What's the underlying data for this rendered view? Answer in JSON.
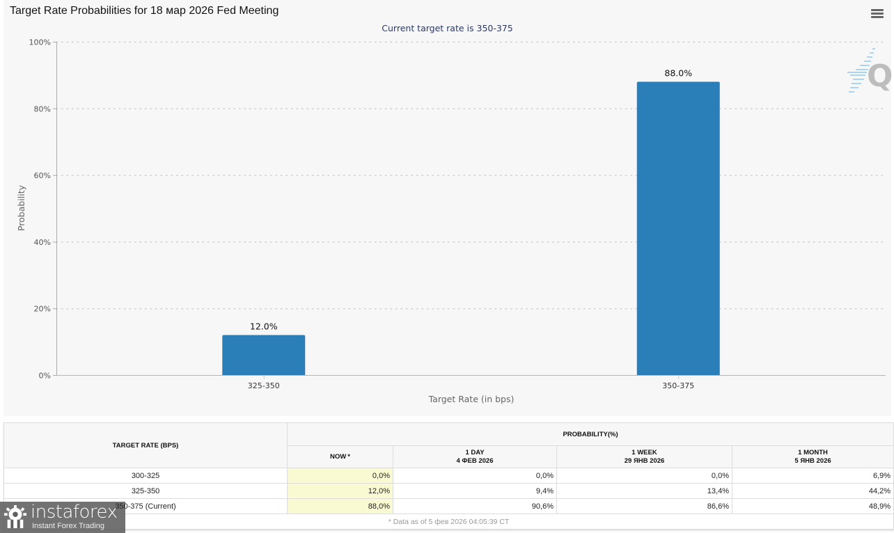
{
  "chart": {
    "title": "Target Rate Probabilities for 18 мар 2026 Fed Meeting",
    "subtitle": "Current target rate is 350-375",
    "menu_icon": "hamburger-menu-icon",
    "watermark_icon": "quikstrike-q-logo-icon",
    "bar_color": "#2a7fb8"
  },
  "chart_data": {
    "type": "bar",
    "title": "Target Rate Probabilities for 18 мар 2026 Fed Meeting",
    "subtitle": "Current target rate is 350-375",
    "categories": [
      "325-350",
      "350-375"
    ],
    "values": [
      12.0,
      88.0
    ],
    "data_labels": [
      "12.0%",
      "88.0%"
    ],
    "xlabel": "Target Rate (in bps)",
    "ylabel": "Probability",
    "ylim": [
      0,
      100
    ],
    "yticks": [
      0,
      20,
      40,
      60,
      80,
      100
    ],
    "ytick_labels": [
      "0%",
      "20%",
      "40%",
      "60%",
      "80%",
      "100%"
    ],
    "grid": true,
    "legend": "none"
  },
  "table": {
    "header_rate": "TARGET RATE (BPS)",
    "header_prob": "PROBABILITY(%)",
    "columns": [
      {
        "line1": "NOW",
        "line2": "",
        "marker": "*"
      },
      {
        "line1": "1 DAY",
        "line2": "4 ФЕВ 2026",
        "marker": ""
      },
      {
        "line1": "1 WEEK",
        "line2": "29 ЯНВ 2026",
        "marker": ""
      },
      {
        "line1": "1 MONTH",
        "line2": "5 ЯНВ 2026",
        "marker": ""
      }
    ],
    "rows": [
      {
        "rate": "300-325",
        "values": [
          "0,0%",
          "0,0%",
          "0,0%",
          "6,9%"
        ]
      },
      {
        "rate": "325-350",
        "values": [
          "12,0%",
          "9,4%",
          "13,4%",
          "44,2%"
        ]
      },
      {
        "rate": "350-375 (Current)",
        "values": [
          "88,0%",
          "90,6%",
          "86,6%",
          "48,9%"
        ]
      }
    ],
    "footnote": "* Data as of 5 фев 2026 04:05:39 CT",
    "now_highlight_color": "#fafad2"
  },
  "logo": {
    "name": "instaforex",
    "tagline": "Instant Forex Trading",
    "icon": "instaforex-gear-logo-icon"
  }
}
